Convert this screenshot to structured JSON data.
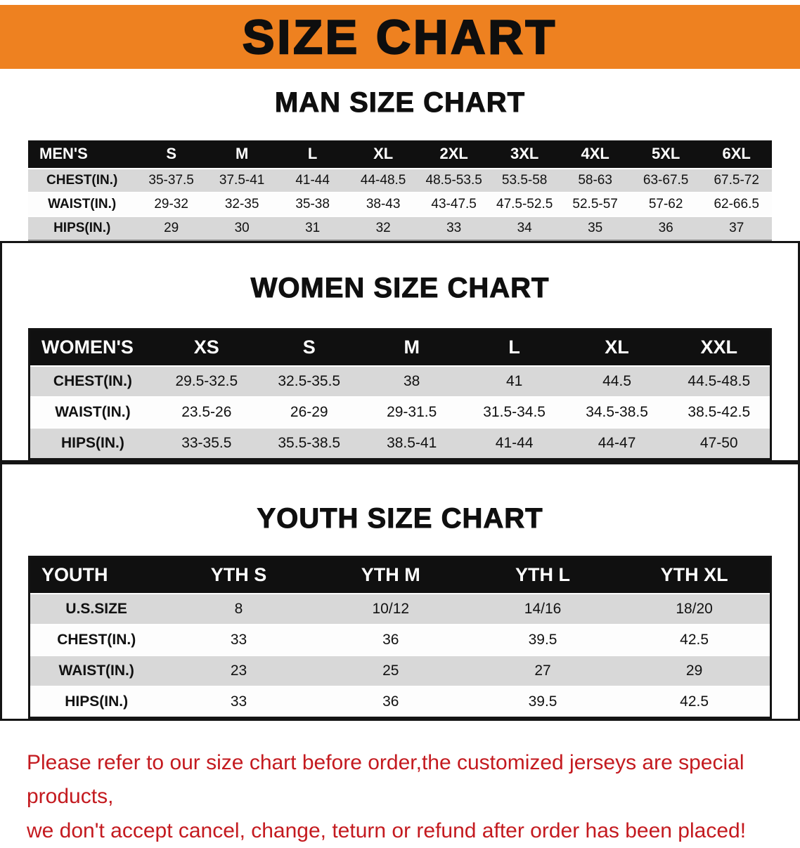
{
  "banner": {
    "title": "SIZE CHART"
  },
  "sections": [
    {
      "heading": "MAN SIZE CHART",
      "table": {
        "header": [
          "MEN'S",
          "S",
          "M",
          "L",
          "XL",
          "2XL",
          "3XL",
          "4XL",
          "5XL",
          "6XL"
        ],
        "rows": [
          [
            "CHEST(IN.)",
            "35-37.5",
            "37.5-41",
            "41-44",
            "44-48.5",
            "48.5-53.5",
            "53.5-58",
            "58-63",
            "63-67.5",
            "67.5-72"
          ],
          [
            "WAIST(IN.)",
            "29-32",
            "32-35",
            "35-38",
            "38-43",
            "43-47.5",
            "47.5-52.5",
            "52.5-57",
            "57-62",
            "62-66.5"
          ],
          [
            "HIPS(IN.)",
            "29",
            "30",
            "31",
            "32",
            "33",
            "34",
            "35",
            "36",
            "37"
          ]
        ]
      }
    },
    {
      "heading": "WOMEN SIZE CHART",
      "table": {
        "header": [
          "WOMEN'S",
          "XS",
          "S",
          "M",
          "L",
          "XL",
          "XXL"
        ],
        "rows": [
          [
            "CHEST(IN.)",
            "29.5-32.5",
            "32.5-35.5",
            "38",
            "41",
            "44.5",
            "44.5-48.5"
          ],
          [
            "WAIST(IN.)",
            "23.5-26",
            "26-29",
            "29-31.5",
            "31.5-34.5",
            "34.5-38.5",
            "38.5-42.5"
          ],
          [
            "HIPS(IN.)",
            "33-35.5",
            "35.5-38.5",
            "38.5-41",
            "41-44",
            "44-47",
            "47-50"
          ]
        ]
      }
    },
    {
      "heading": "YOUTH SIZE CHART",
      "table": {
        "header": [
          "YOUTH",
          "YTH S",
          "YTH M",
          "YTH L",
          "YTH XL"
        ],
        "rows": [
          [
            "U.S.SIZE",
            "8",
            "10/12",
            "14/16",
            "18/20"
          ],
          [
            "CHEST(IN.)",
            "33",
            "36",
            "39.5",
            "42.5"
          ],
          [
            "WAIST(IN.)",
            "23",
            "25",
            "27",
            "29"
          ],
          [
            "HIPS(IN.)",
            "33",
            "36",
            "39.5",
            "42.5"
          ]
        ]
      }
    }
  ],
  "footer": {
    "line1": "Please refer to our size chart before order,the customized jerseys are special products,",
    "line2": "we don't accept cancel, change, teturn or refund after order has been placed!"
  },
  "colors": {
    "banner_bg": "#ee8120",
    "header_bg": "#101010",
    "row_alt": "#d8d8d8",
    "footer_text": "#c41a1f"
  }
}
